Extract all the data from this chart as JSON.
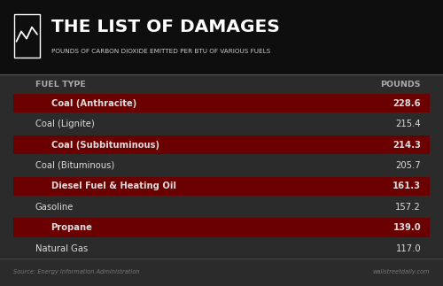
{
  "title": "THE LIST OF DAMAGES",
  "subtitle": "POUNDS OF CARBON DIOXIDE EMITTED PER BTU OF VARIOUS FUELS",
  "col_fuel": "FUEL TYPE",
  "col_pounds": "POUNDS",
  "rows": [
    {
      "fuel": "Coal (Anthracite)",
      "value": "228.6",
      "highlight": true
    },
    {
      "fuel": "Coal (Lignite)",
      "value": "215.4",
      "highlight": false
    },
    {
      "fuel": "Coal (Subbituminous)",
      "value": "214.3",
      "highlight": true
    },
    {
      "fuel": "Coal (Bituminous)",
      "value": "205.7",
      "highlight": false
    },
    {
      "fuel": "Diesel Fuel & Heating Oil",
      "value": "161.3",
      "highlight": true
    },
    {
      "fuel": "Gasoline",
      "value": "157.2",
      "highlight": false
    },
    {
      "fuel": "Propane",
      "value": "139.0",
      "highlight": true
    },
    {
      "fuel": "Natural Gas",
      "value": "117.0",
      "highlight": false
    }
  ],
  "bg_outer": "#2b2b2b",
  "bg_header": "#0e0e0e",
  "row_highlight_color": "#6b0000",
  "row_normal_color": "#2b2b2b",
  "title_color": "#ffffff",
  "subtitle_color": "#cccccc",
  "col_header_color": "#aaaaaa",
  "row_text_color": "#dddddd",
  "source_text": "Source: Energy Information Administration",
  "watermark_text": "wallstreetdaily.com",
  "footer_color": "#777777",
  "separator_color": "#555555"
}
